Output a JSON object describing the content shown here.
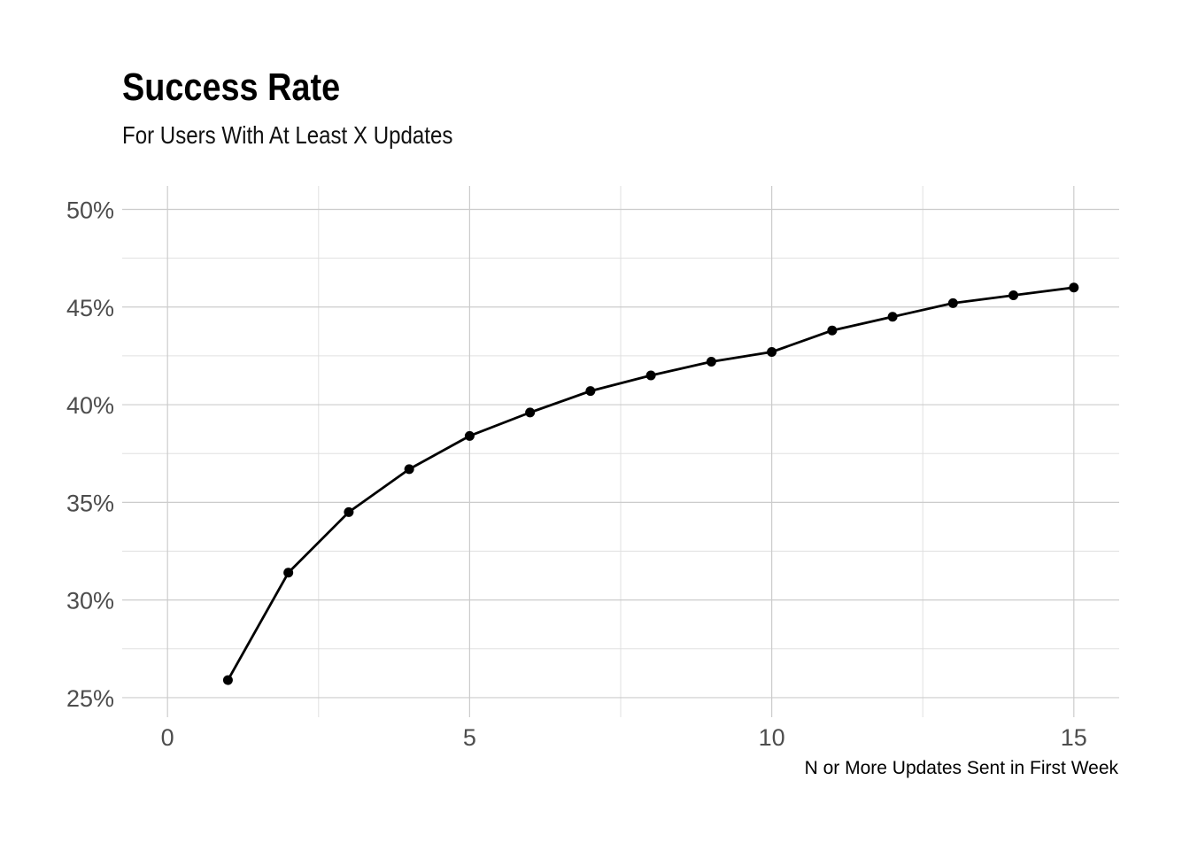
{
  "chart_data": {
    "type": "line",
    "title": "Success Rate",
    "subtitle": "For Users With At Least X Updates",
    "xlabel": "N or More Updates Sent in First Week",
    "ylabel": "",
    "x": [
      1,
      2,
      3,
      4,
      5,
      6,
      7,
      8,
      9,
      10,
      11,
      12,
      13,
      14,
      15
    ],
    "series": [
      {
        "values": [
          25.9,
          31.4,
          34.5,
          36.7,
          38.4,
          39.6,
          40.7,
          41.5,
          42.2,
          42.7,
          43.8,
          44.5,
          45.2,
          45.6,
          46.0
        ]
      }
    ],
    "xlim": [
      -0.75,
      15.75
    ],
    "ylim": [
      24.0,
      51.2
    ],
    "x_ticks": [
      0,
      5,
      10,
      15
    ],
    "x_tick_labels": [
      "0",
      "5",
      "10",
      "15"
    ],
    "y_ticks": [
      25,
      30,
      35,
      40,
      45,
      50
    ],
    "y_tick_labels": [
      "25%",
      "30%",
      "35%",
      "40%",
      "45%",
      "50%"
    ],
    "grid": true,
    "legend": "none",
    "colors": {
      "line": "#000000",
      "grid_major": "#cccccc",
      "grid_minor": "#e0e0e0",
      "tick_text": "#4d4d4d",
      "background": "#ffffff"
    }
  }
}
